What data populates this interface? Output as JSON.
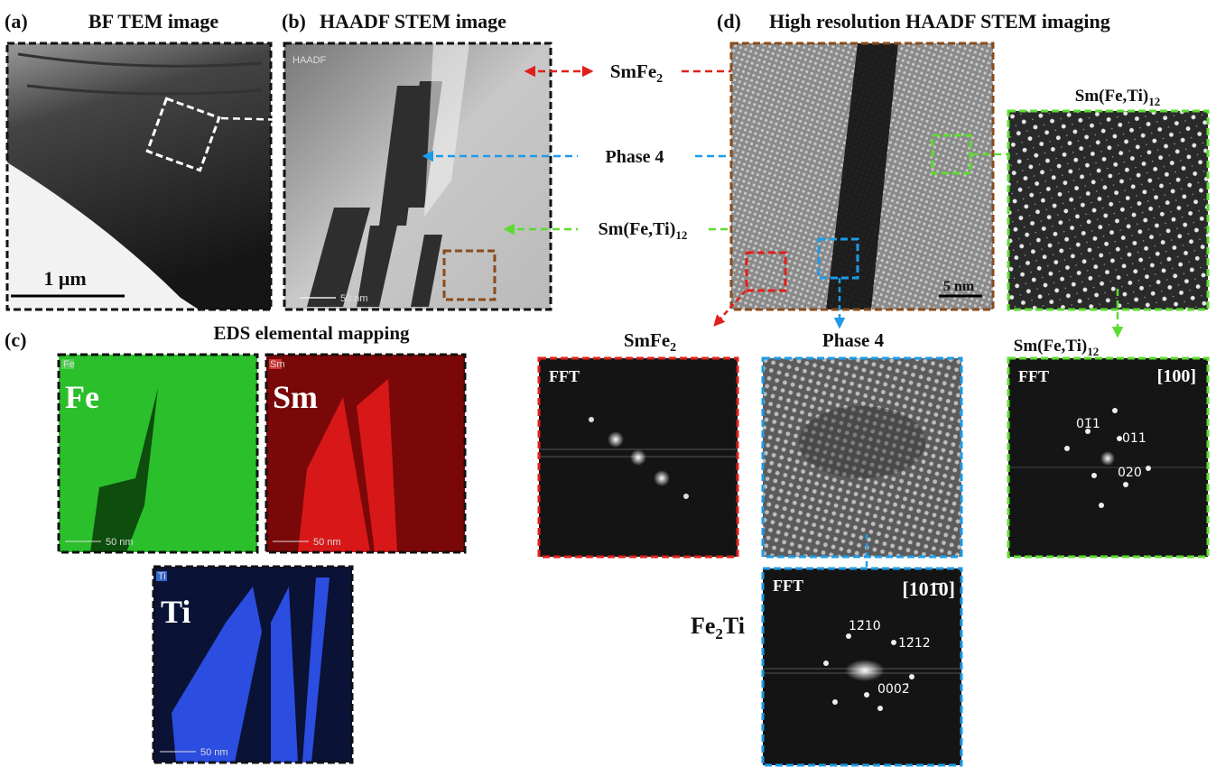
{
  "panel_a": {
    "label": "(a)",
    "title": "BF TEM image",
    "scale_bar": "1 μm"
  },
  "panel_b": {
    "label": "(b)",
    "title": "HAADF STEM image",
    "detector": "HAADF",
    "scale_bar": "50 nm"
  },
  "panel_c": {
    "label": "(c)",
    "title": "EDS elemental mapping",
    "maps": [
      {
        "element": "Fe",
        "badge": "Fe",
        "scale_bar": "50 nm"
      },
      {
        "element": "Sm",
        "badge": "Sm",
        "scale_bar": "50 nm"
      },
      {
        "element": "Ti",
        "badge": "Ti",
        "scale_bar": "50 nm"
      }
    ]
  },
  "panel_d": {
    "label": "(d)",
    "title": "High resolution HAADF STEM imaging",
    "scale_bar": "5 nm",
    "zoom_title": {
      "main": "Sm(Fe,Ti)",
      "sub": "12"
    }
  },
  "phase_arrows": [
    {
      "main": "SmFe",
      "sub": "2"
    },
    {
      "main": "Phase 4"
    },
    {
      "main": "Sm(Fe,Ti)",
      "sub": "12"
    }
  ],
  "fft_row": [
    {
      "title": {
        "main": "SmFe",
        "sub": "2"
      },
      "tag": "FFT"
    },
    {
      "title": {
        "main": "Phase 4"
      }
    },
    {
      "title": {
        "main": "Sm(Fe,Ti)",
        "sub": "12"
      },
      "tag": "FFT",
      "zone": "[100]",
      "indices": [
        "01̄1",
        "011",
        "020"
      ]
    }
  ],
  "fe2ti_fft": {
    "phase": {
      "a": "Fe",
      "sub": "2",
      "b": "Ti"
    },
    "tag": "FFT",
    "zone": "[101̄0]",
    "indices": [
      "12̄10",
      "12̄12",
      "0002̄"
    ]
  }
}
